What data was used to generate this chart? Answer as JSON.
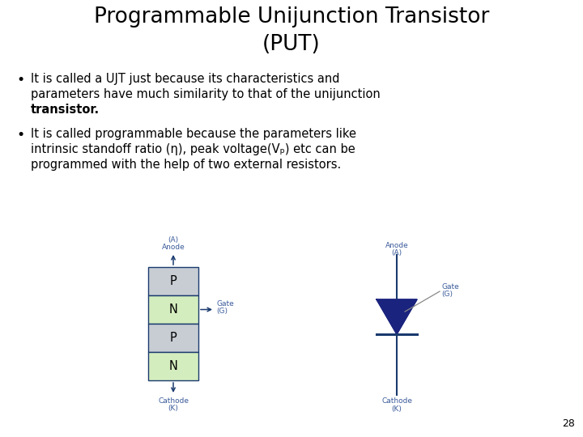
{
  "title_line1": "Programmable Unijunction Transistor",
  "title_line2": "(PUT)",
  "title_fontsize": 19,
  "title_color": "#000000",
  "body_fontsize": 10.5,
  "text_color": "#000000",
  "bg_color": "#ffffff",
  "p_color": "#c8cdd4",
  "n_color": "#d4edbe",
  "border_color": "#1a3a6e",
  "label_color": "#3a5a9a",
  "diode_color": "#1a237e",
  "page_number": "28",
  "bullet1": [
    "It is called a UJT just because its characteristics and",
    "parameters have much similarity to that of the unijunction",
    "transistor."
  ],
  "bullet2": [
    "It is called programmable because the parameters like",
    "intrinsic standoff ratio (η), peak voltage(Vₚ) etc can be",
    "programmed with the help of two external resistors."
  ]
}
